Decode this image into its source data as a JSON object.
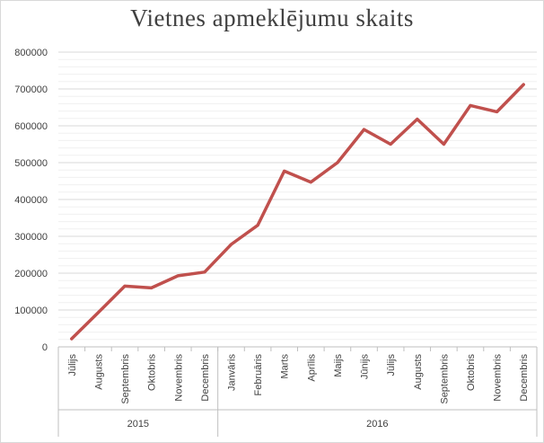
{
  "chart_data": {
    "type": "line",
    "title": "Vietnes apmeklējumu skaits",
    "xlabel": "",
    "ylabel": "",
    "ylim": [
      0,
      800000
    ],
    "yticks": [
      0,
      100000,
      200000,
      300000,
      400000,
      500000,
      600000,
      700000,
      800000
    ],
    "grid": true,
    "legend": "none",
    "categories": [
      "Jūlijs",
      "Augusts",
      "Septembris",
      "Oktobris",
      "Novembris",
      "Decembris",
      "Janvāris",
      "Februāris",
      "Marts",
      "Aprīlis",
      "Maijs",
      "Jūnijs",
      "Jūlijs",
      "Augusts",
      "Septembris",
      "Oktobris",
      "Novembris",
      "Decembris"
    ],
    "groups": [
      {
        "label": "2015",
        "count": 6
      },
      {
        "label": "2016",
        "count": 12
      }
    ],
    "series": [
      {
        "color": "#c0504d",
        "values": [
          22000,
          93000,
          165000,
          160000,
          193000,
          203000,
          278000,
          330000,
          477000,
          447000,
          500000,
          590000,
          550000,
          618000,
          550000,
          655000,
          638000,
          712000
        ]
      }
    ]
  }
}
